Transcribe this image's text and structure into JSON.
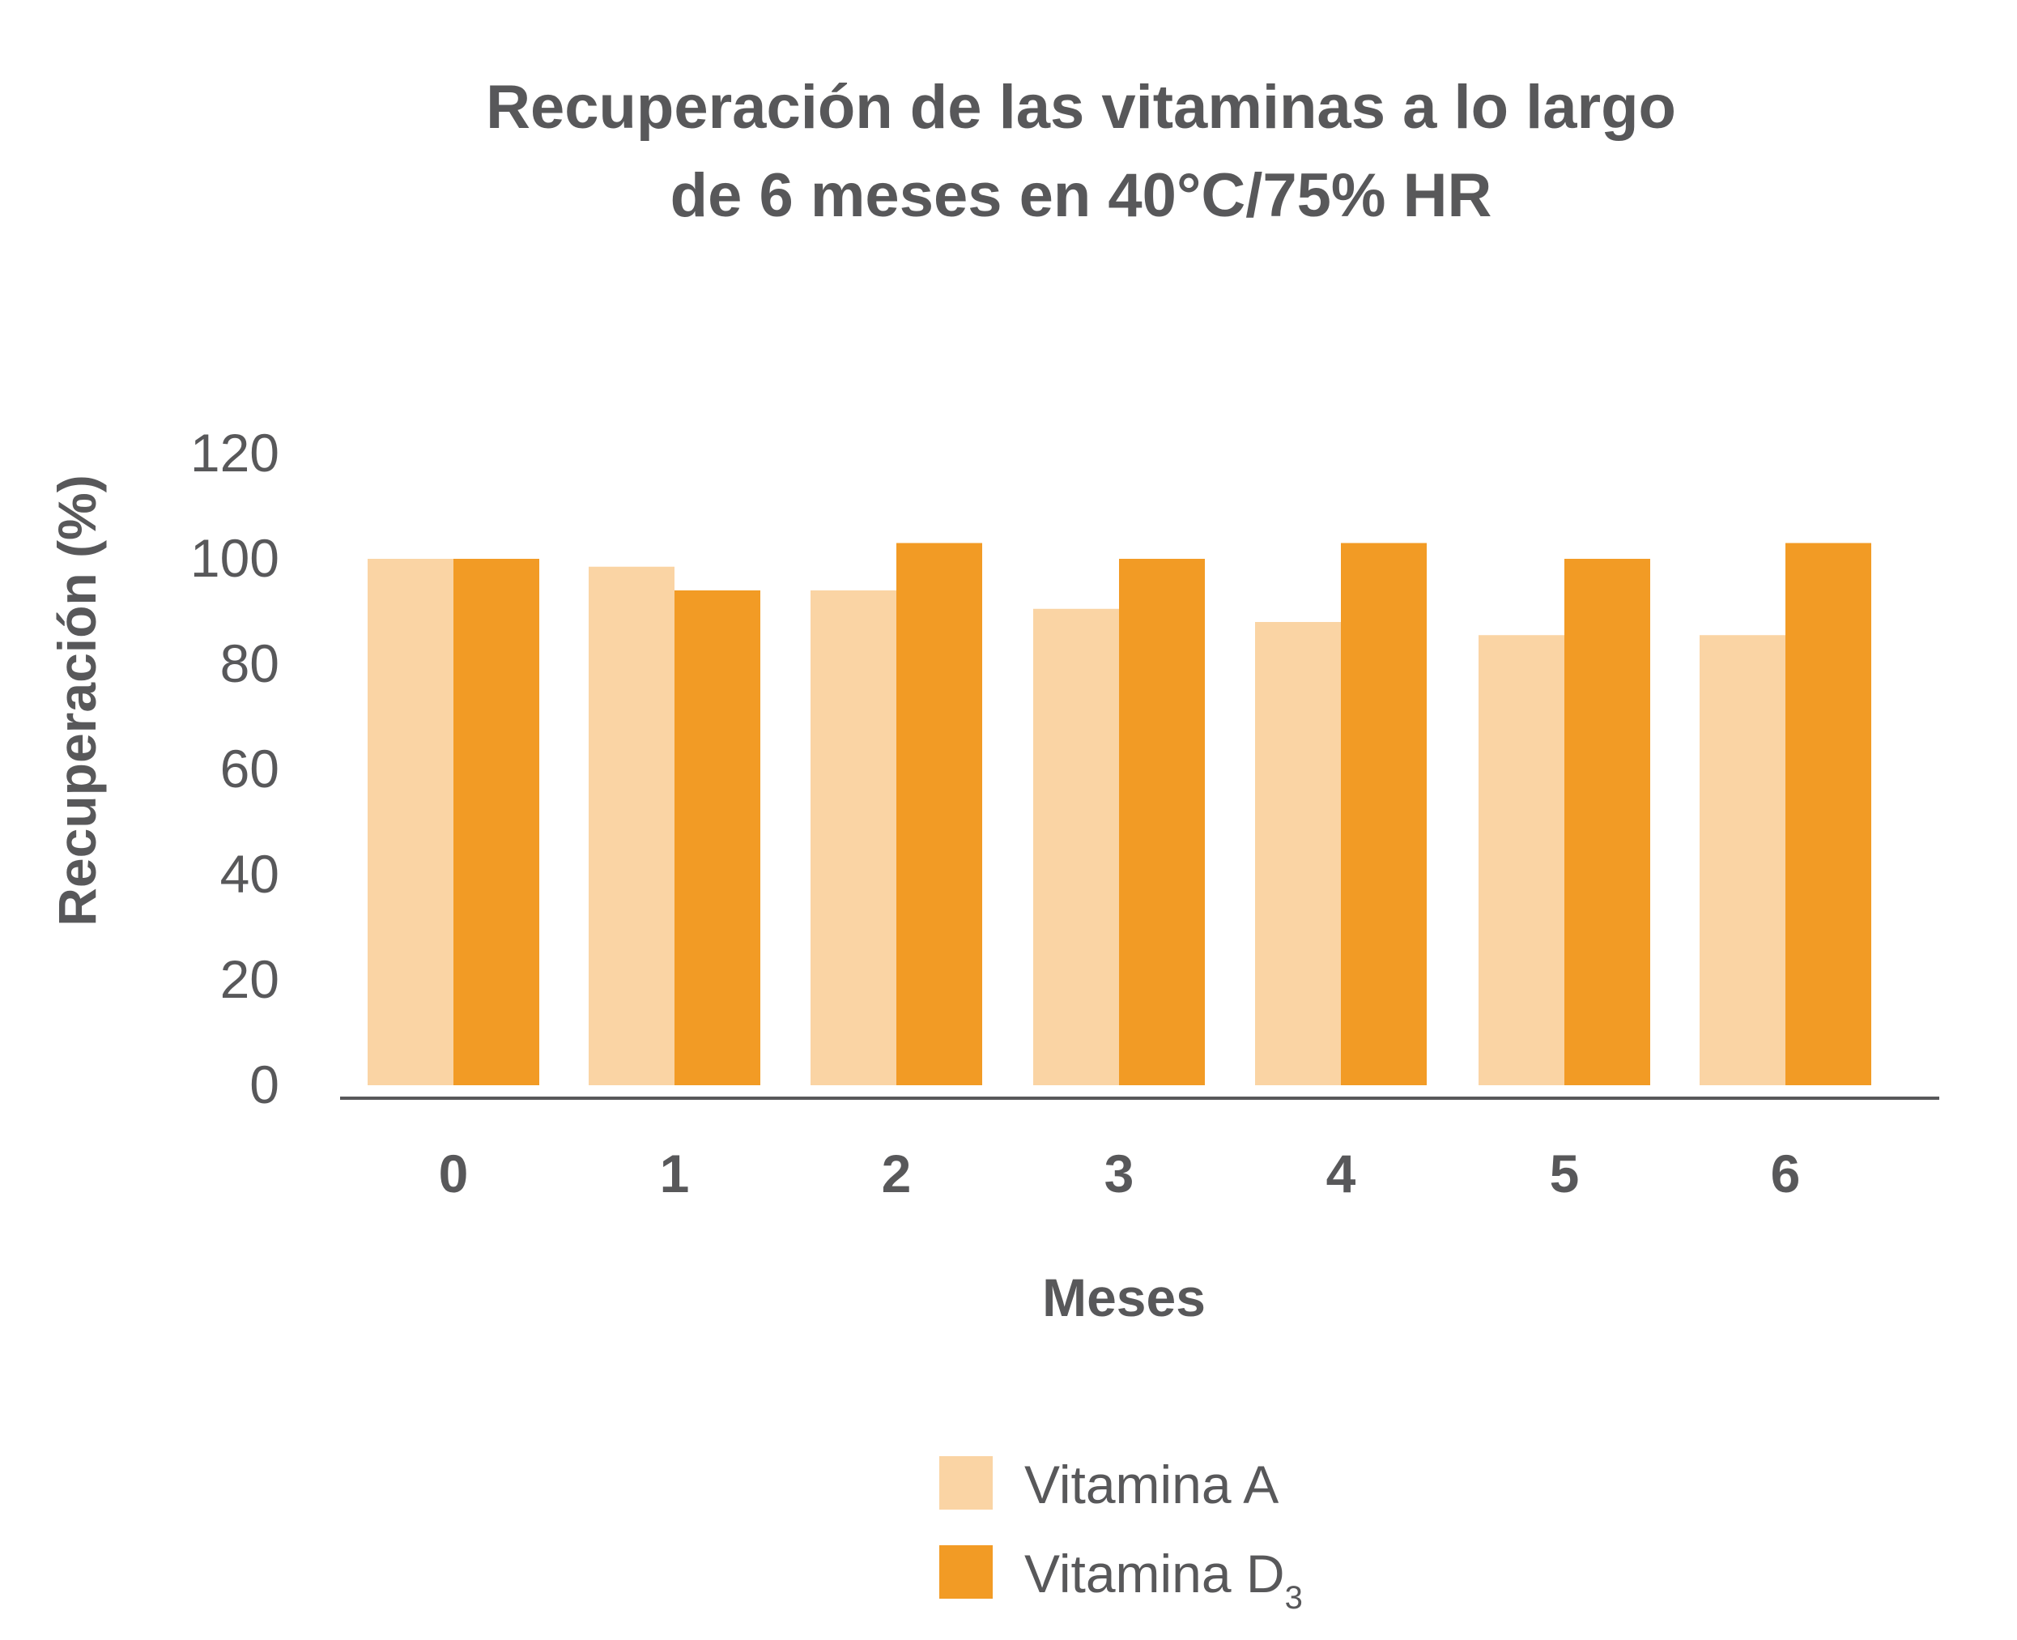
{
  "chart_data": {
    "type": "bar",
    "title_lines": [
      "Recuperación de las vitaminas a lo largo",
      "de 6 meses en 40°C/75% HR"
    ],
    "xlabel": "Meses",
    "ylabel": "Recuperación (%)",
    "ylim": [
      0,
      120
    ],
    "yticks": [
      "0",
      "20",
      "40",
      "60",
      "80",
      "100",
      "120"
    ],
    "categories": [
      "0",
      "1",
      "2",
      "3",
      "4",
      "5",
      "6"
    ],
    "grid": false,
    "legend_position": "bottom-center",
    "series": [
      {
        "name": "Vitamina A",
        "legend_main": "Vitamina A",
        "legend_sub": "",
        "color": "#fad4a4",
        "values": [
          100,
          98.5,
          94,
          90.5,
          88,
          85.5,
          85.5
        ]
      },
      {
        "name": "Vitamina D3",
        "legend_main": "Vitamina D",
        "legend_sub": "3",
        "color": "#f29b25",
        "values": [
          100,
          94,
          103,
          100,
          103,
          100,
          103
        ]
      }
    ],
    "axis_color": "#58585a"
  }
}
